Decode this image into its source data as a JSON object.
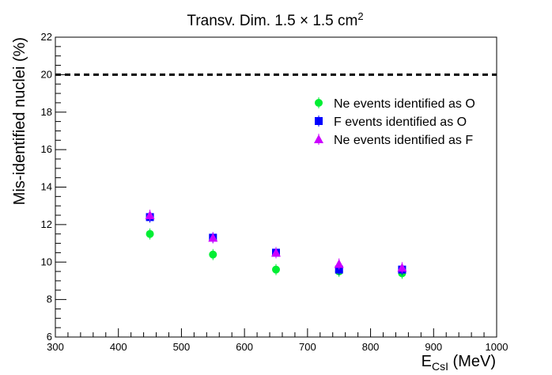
{
  "chart_data": {
    "type": "scatter",
    "title": "Transv. Dim. 1.5 × 1.5 cm²",
    "xlabel": "E_CsI (MeV)",
    "ylabel": "Mis-identified nuclei (%)",
    "xlim": [
      300,
      1000
    ],
    "ylim": [
      6,
      22
    ],
    "x_ticks": [
      300,
      400,
      500,
      600,
      700,
      800,
      900,
      1000
    ],
    "y_ticks": [
      6,
      8,
      10,
      12,
      14,
      16,
      18,
      20,
      22
    ],
    "grid": false,
    "legend_position": "top-right",
    "reference_line": {
      "y": 20,
      "style": "dashed"
    },
    "series": [
      {
        "name": "Ne events identified as O",
        "marker": "circle",
        "color": "#00ee33",
        "x": [
          450,
          550,
          650,
          750,
          850
        ],
        "y": [
          11.5,
          10.4,
          9.6,
          9.5,
          9.4
        ]
      },
      {
        "name": "F events identified as O",
        "marker": "square",
        "color": "#0000ff",
        "x": [
          450,
          550,
          650,
          750,
          850
        ],
        "y": [
          12.4,
          11.3,
          10.5,
          9.6,
          9.6
        ]
      },
      {
        "name": "Ne events identified as F",
        "marker": "triangle",
        "color": "#cc00ff",
        "x": [
          450,
          550,
          650,
          750,
          850
        ],
        "y": [
          12.5,
          11.3,
          10.5,
          9.9,
          9.7
        ]
      }
    ]
  }
}
